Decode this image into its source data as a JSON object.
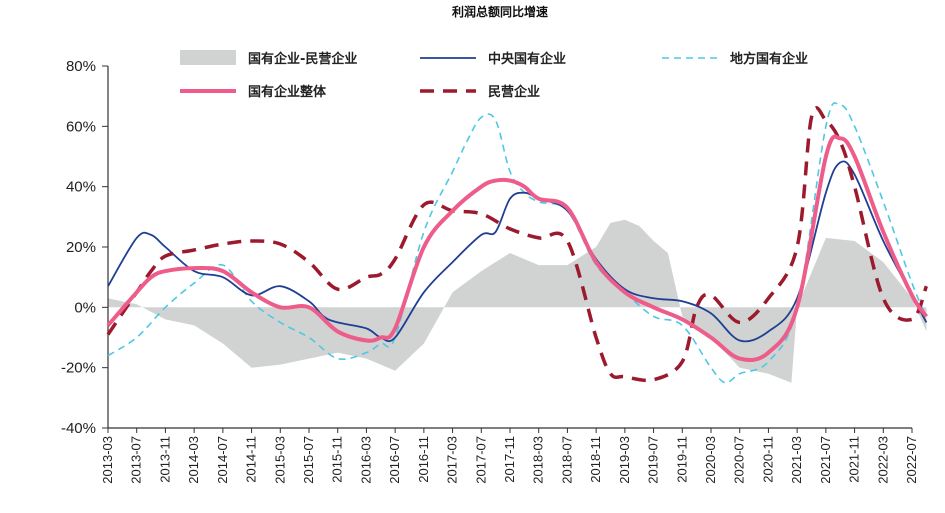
{
  "chart_data": {
    "type": "line",
    "title": "利润总额同比增速",
    "xlabel": "",
    "ylabel": "",
    "ylim": [
      -40,
      80
    ],
    "yticks": [
      "80%",
      "60%",
      "40%",
      "20%",
      "0%",
      "-20%",
      "-40%"
    ],
    "xticks": [
      "2013-03",
      "2013-07",
      "2013-11",
      "2014-03",
      "2014-07",
      "2014-11",
      "2015-03",
      "2015-07",
      "2015-11",
      "2016-03",
      "2016-07",
      "2016-11",
      "2017-03",
      "2017-07",
      "2017-11",
      "2018-03",
      "2018-07",
      "2018-11",
      "2019-03",
      "2019-07",
      "2019-11",
      "2020-03",
      "2020-07",
      "2020-11",
      "2021-03",
      "2021-07",
      "2021-11",
      "2022-03",
      "2022-07"
    ],
    "legend_position": "top",
    "grid": false,
    "series": [
      {
        "name": "国有企业-民营企业",
        "style": "area",
        "color": "#d0d3d2",
        "x": [
          0,
          1,
          2,
          3,
          4,
          5,
          6,
          7,
          8,
          9,
          10,
          11,
          12,
          13,
          14,
          15,
          16,
          17,
          17.5,
          18,
          18.5,
          19,
          19.5,
          20,
          21,
          22,
          23,
          23.8,
          24,
          25,
          26,
          27,
          28,
          28.5
        ],
        "values": [
          3,
          1,
          -4,
          -6,
          -12,
          -20,
          -19,
          -17,
          -15,
          -17,
          -21,
          -12,
          5,
          12,
          18,
          14,
          14,
          20,
          28,
          29,
          27,
          22,
          18,
          -3,
          -10,
          -20,
          -22,
          -25,
          0,
          23,
          22,
          15,
          3,
          -8
        ]
      },
      {
        "name": "中央国有企业",
        "style": "solid",
        "color": "#1f3f93",
        "x": [
          0,
          1,
          1.5,
          2,
          3,
          4,
          5,
          6,
          7,
          7.5,
          8,
          9,
          9.5,
          10,
          11,
          12,
          13,
          13.5,
          14,
          14.5,
          15,
          16,
          17,
          18,
          19,
          20,
          21,
          22,
          23,
          24,
          25,
          25.5,
          26,
          27,
          28,
          28.5
        ],
        "values": [
          7,
          23,
          24,
          20,
          12,
          10,
          4,
          7,
          2,
          -3,
          -5,
          -7,
          -10,
          -10,
          5,
          15,
          24,
          25,
          36,
          38,
          36,
          32,
          16,
          6,
          3,
          2,
          -2,
          -11,
          -8,
          3,
          38,
          48,
          44,
          22,
          4,
          -5
        ]
      },
      {
        "name": "地方国有企业",
        "style": "dashed",
        "color": "#4ec8e3",
        "x": [
          0,
          1,
          2,
          3,
          4,
          5,
          6,
          7,
          8,
          9,
          9.5,
          10,
          11,
          12,
          12.5,
          13,
          13.5,
          14,
          14.5,
          15,
          16,
          17,
          18,
          19,
          20,
          21,
          21.5,
          22,
          23,
          24,
          25,
          25.5,
          26,
          27,
          28,
          28.5
        ],
        "values": [
          -16,
          -10,
          0,
          8,
          14,
          2,
          -5,
          -10,
          -17,
          -15,
          -12,
          -10,
          25,
          45,
          55,
          63,
          62,
          45,
          38,
          35,
          32,
          14,
          5,
          -3,
          -6,
          -20,
          -25,
          -22,
          -18,
          0,
          60,
          67,
          60,
          35,
          8,
          -3
        ]
      },
      {
        "name": "国有企业整体",
        "style": "solid-thick",
        "color": "#ee5d8a",
        "x": [
          0,
          1,
          1.5,
          2,
          3,
          4,
          5,
          6,
          7,
          8,
          9,
          9.5,
          10,
          11,
          12,
          13,
          13.5,
          14,
          14.5,
          15,
          16,
          17,
          18,
          19,
          20,
          21,
          22,
          23,
          24,
          25,
          25.5,
          26,
          27,
          28,
          28.5
        ],
        "values": [
          -6,
          5,
          10,
          12,
          13,
          12,
          5,
          0,
          0,
          -8,
          -11,
          -10,
          -7,
          20,
          32,
          40,
          42,
          42,
          40,
          36,
          33,
          15,
          5,
          0,
          -4,
          -10,
          -17,
          -15,
          0,
          50,
          56,
          50,
          25,
          4,
          -3
        ]
      },
      {
        "name": "民营企业",
        "style": "dashed-thick",
        "color": "#9c1a2e",
        "x": [
          0,
          1,
          1.5,
          2,
          3,
          4,
          5,
          6,
          7,
          8,
          9,
          9.5,
          10,
          11,
          12,
          13,
          14,
          15,
          16,
          17,
          17.5,
          18,
          19,
          20,
          20.5,
          21,
          22,
          23,
          24,
          24.5,
          25,
          25.5,
          26,
          27,
          28,
          28.5
        ],
        "values": [
          -9,
          5,
          12,
          17,
          19,
          21,
          22,
          21,
          15,
          6,
          10,
          11,
          16,
          34,
          32,
          31,
          26,
          23,
          22,
          -10,
          -22,
          -23,
          -24,
          -18,
          0,
          4,
          -5,
          3,
          20,
          63,
          62,
          55,
          40,
          3,
          -4,
          7
        ]
      }
    ]
  }
}
